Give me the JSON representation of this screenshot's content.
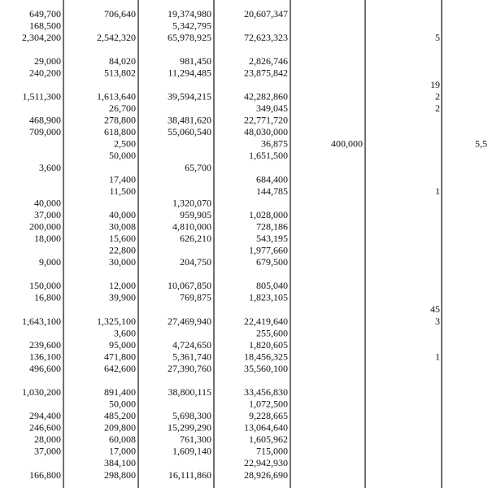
{
  "table": {
    "rows": [
      [
        "649,700",
        "706,640",
        "19,374,980",
        "20,607,347",
        null,
        null,
        null
      ],
      [
        "168,500",
        null,
        "5,342,795",
        null,
        null,
        null,
        null
      ],
      [
        "2,304,200",
        "2,542,320",
        "65,978,925",
        "72,623,323",
        null,
        "5",
        null
      ],
      [
        null,
        null,
        null,
        null,
        null,
        null,
        null
      ],
      [
        "29,000",
        "84,020",
        "981,450",
        "2,826,746",
        null,
        null,
        null
      ],
      [
        "240,200",
        "513,802",
        "11,294,485",
        "23,875,842",
        null,
        null,
        null
      ],
      [
        null,
        null,
        null,
        null,
        null,
        "19",
        null
      ],
      [
        "1,511,300",
        "1,613,640",
        "39,594,215",
        "42,282,860",
        null,
        "2",
        null
      ],
      [
        null,
        "26,700",
        null,
        "349,045",
        null,
        "2",
        null
      ],
      [
        "468,900",
        "278,800",
        "38,481,620",
        "22,771,720",
        null,
        null,
        null
      ],
      [
        "709,000",
        "618,800",
        "55,060,540",
        "48,030,000",
        null,
        null,
        null
      ],
      [
        null,
        "2,500",
        null,
        "36,875",
        "400,000",
        null,
        "5,5"
      ],
      [
        null,
        "50,000",
        null,
        "1,651,500",
        null,
        null,
        null
      ],
      [
        "3,600",
        null,
        "65,700",
        null,
        null,
        null,
        null
      ],
      [
        null,
        "17,400",
        null,
        "684,400",
        null,
        null,
        null
      ],
      [
        null,
        "11,500",
        null,
        "144,785",
        null,
        "1",
        null
      ],
      [
        "40,000",
        null,
        "1,320,070",
        null,
        null,
        null,
        null
      ],
      [
        "37,000",
        "40,000",
        "959,905",
        "1,028,000",
        null,
        null,
        null
      ],
      [
        "200,000",
        "30,008",
        "4,810,000",
        "728,186",
        null,
        null,
        null
      ],
      [
        "18,000",
        "15,600",
        "626,210",
        "543,195",
        null,
        null,
        null
      ],
      [
        null,
        "22,800",
        null,
        "1,977,660",
        null,
        null,
        null
      ],
      [
        "9,000",
        "30,000",
        "204,750",
        "679,500",
        null,
        null,
        null
      ],
      [
        null,
        null,
        null,
        null,
        null,
        null,
        null
      ],
      [
        "150,000",
        "12,000",
        "10,067,850",
        "805,040",
        null,
        null,
        null
      ],
      [
        "16,800",
        "39,900",
        "769,875",
        "1,823,105",
        null,
        null,
        null
      ],
      [
        null,
        null,
        null,
        null,
        null,
        "45",
        null
      ],
      [
        "1,643,100",
        "1,325,100",
        "27,469,940",
        "22,419,640",
        null,
        "3",
        null
      ],
      [
        null,
        "3,600",
        null,
        "255,600",
        null,
        null,
        null
      ],
      [
        "239,600",
        "95,000",
        "4,724,650",
        "1,820,605",
        null,
        null,
        null
      ],
      [
        "136,100",
        "471,800",
        "5,361,740",
        "18,456,325",
        null,
        "1",
        null
      ],
      [
        "496,600",
        "642,600",
        "27,390,760",
        "35,560,100",
        null,
        null,
        null
      ],
      [
        null,
        null,
        null,
        null,
        null,
        null,
        null
      ],
      [
        "1,030,200",
        "891,400",
        "38,800,115",
        "33,456,830",
        null,
        null,
        null
      ],
      [
        null,
        "50,000",
        null,
        "1,072,500",
        null,
        null,
        null
      ],
      [
        "294,400",
        "485,200",
        "5,698,300",
        "9,228,665",
        null,
        null,
        null
      ],
      [
        "246,600",
        "209,800",
        "15,299,290",
        "13,064,640",
        null,
        null,
        null
      ],
      [
        "28,000",
        "60,008",
        "761,300",
        "1,605,962",
        null,
        null,
        null
      ],
      [
        "37,000",
        "17,000",
        "1,609,140",
        "715,000",
        null,
        null,
        null
      ],
      [
        null,
        "384,100",
        null,
        "22,942,930",
        null,
        null,
        null
      ],
      [
        "166,800",
        "298,800",
        "16,111,860",
        "28,926,690",
        null,
        null,
        null
      ]
    ]
  }
}
